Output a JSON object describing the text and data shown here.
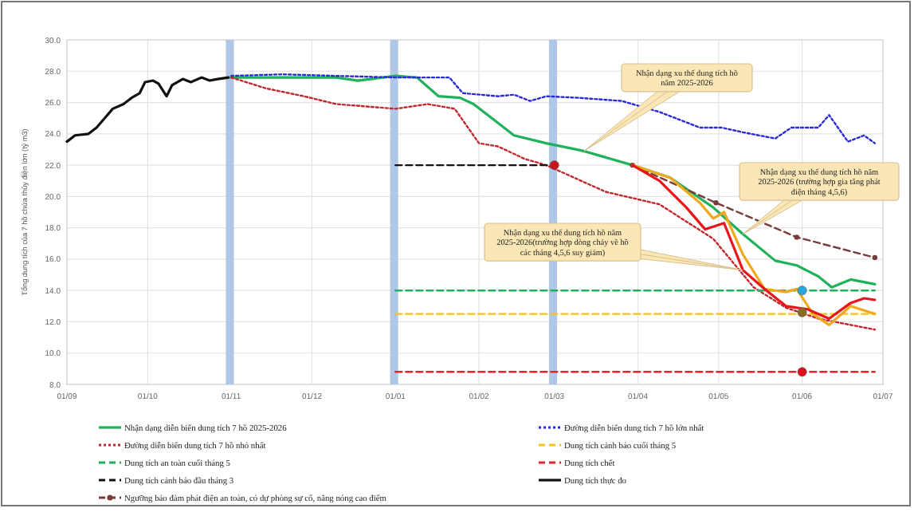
{
  "chart_data": {
    "type": "line",
    "ylabel": "Tổng dung tích của 7 hồ chứa thủy điện lớn (tỷ m3)",
    "xlim": [
      "2025-09-01",
      "2026-07-01"
    ],
    "xticks": [
      {
        "value": "2025-09-01",
        "label": "01/09"
      },
      {
        "value": "2025-10-01",
        "label": "01/10"
      },
      {
        "value": "2025-11-01",
        "label": "01/11"
      },
      {
        "value": "2025-12-01",
        "label": "01/12"
      },
      {
        "value": "2026-01-01",
        "label": "01/01"
      },
      {
        "value": "2026-02-01",
        "label": "01/02"
      },
      {
        "value": "2026-03-01",
        "label": "01/03"
      },
      {
        "value": "2026-04-01",
        "label": "01/04"
      },
      {
        "value": "2026-05-01",
        "label": "01/05"
      },
      {
        "value": "2026-06-01",
        "label": "01/06"
      },
      {
        "value": "2026-07-01",
        "label": "01/07"
      }
    ],
    "ylim": [
      8,
      30
    ],
    "yticks": [
      {
        "value": 8,
        "label": "8.0"
      },
      {
        "value": 10,
        "label": "10.0"
      },
      {
        "value": 12,
        "label": "12.0"
      },
      {
        "value": 14,
        "label": "14.0"
      },
      {
        "value": 16,
        "label": "16.0"
      },
      {
        "value": 18,
        "label": "18.0"
      },
      {
        "value": 20,
        "label": "20.0"
      },
      {
        "value": 22,
        "label": "22.0"
      },
      {
        "value": 24,
        "label": "24.0"
      },
      {
        "value": 26,
        "label": "26.0"
      },
      {
        "value": 28,
        "label": "28.0"
      },
      {
        "value": 30,
        "label": "30.0"
      }
    ],
    "grid": true,
    "legend": "bottom",
    "series": [
      {
        "name": "Nhận dạng diễn biến dung tích 7 hồ 2025-2026",
        "color": "#1fb25a",
        "line_style": "solid",
        "x": [
          "2025-11-01",
          "2025-11-20",
          "2025-12-10",
          "2025-12-18",
          "2026-01-01",
          "2026-01-09",
          "2026-01-17",
          "2026-01-25",
          "2026-01-30",
          "2026-02-08",
          "2026-02-14",
          "2026-02-26",
          "2026-03-12",
          "2026-03-30",
          "2026-04-13",
          "2026-04-29",
          "2026-05-10",
          "2026-05-22",
          "2026-05-30",
          "2026-06-07",
          "2026-06-12",
          "2026-06-19",
          "2026-06-28"
        ],
        "values": [
          27.6,
          27.6,
          27.6,
          27.4,
          27.7,
          27.6,
          26.4,
          26.3,
          25.9,
          24.7,
          23.9,
          23.4,
          22.9,
          22.0,
          21.2,
          19.3,
          17.6,
          15.9,
          15.6,
          14.9,
          14.2,
          14.7,
          14.4
        ]
      },
      {
        "name": "Đường diễn biến dung tích 7 hồ lớn nhất",
        "color": "#2a2ad6",
        "line_style": "dotted",
        "x": [
          "2025-11-01",
          "2025-11-20",
          "2025-12-10",
          "2026-01-01",
          "2026-01-21",
          "2026-01-26",
          "2026-02-08",
          "2026-02-14",
          "2026-02-20",
          "2026-02-26",
          "2026-03-10",
          "2026-03-26",
          "2026-04-09",
          "2026-04-24",
          "2026-05-02",
          "2026-05-10",
          "2026-05-22",
          "2026-05-28",
          "2026-06-07",
          "2026-06-11",
          "2026-06-18",
          "2026-06-24",
          "2026-06-28"
        ],
        "values": [
          27.7,
          27.8,
          27.7,
          27.6,
          27.6,
          26.6,
          26.4,
          26.5,
          26.1,
          26.4,
          26.3,
          26.1,
          25.4,
          24.4,
          24.4,
          24.1,
          23.7,
          24.4,
          24.4,
          25.2,
          23.5,
          23.9,
          23.4
        ]
      },
      {
        "name": "Đường diễn biến dung tích 7 hồ nhỏ nhất",
        "color": "#c0282d",
        "line_style": "dotted",
        "x": [
          "2025-11-01",
          "2025-11-14",
          "2025-11-28",
          "2025-12-10",
          "2026-01-01",
          "2026-01-13",
          "2026-01-23",
          "2026-02-01",
          "2026-02-08",
          "2026-02-18",
          "2026-02-26",
          "2026-03-20",
          "2026-04-09",
          "2026-04-29",
          "2026-05-14",
          "2026-05-26",
          "2026-06-07",
          "2026-06-28"
        ],
        "values": [
          27.6,
          26.9,
          26.4,
          25.9,
          25.6,
          25.9,
          25.6,
          23.4,
          23.2,
          22.4,
          22.0,
          20.3,
          19.5,
          17.3,
          14.2,
          12.9,
          12.2,
          11.5
        ]
      },
      {
        "name": "Dung tích cảnh báo cuối tháng 5",
        "color": "#f2c418",
        "line_style": "dashed",
        "x": [
          "2026-01-01",
          "2026-06-28"
        ],
        "values": [
          12.5,
          12.5
        ]
      },
      {
        "name": "Dung tích an toàn cuối tháng 5",
        "color": "#1fb25a",
        "line_style": "dashed",
        "x": [
          "2026-01-01",
          "2026-06-28"
        ],
        "values": [
          14.0,
          14.0
        ]
      },
      {
        "name": "Dung tích chết",
        "color": "#e0262b",
        "line_style": "dashed",
        "x": [
          "2026-01-01",
          "2026-06-28"
        ],
        "values": [
          8.8,
          8.8
        ]
      },
      {
        "name": "Dung tích cảnh báo đầu tháng 3",
        "color": "#111111",
        "line_style": "dashed",
        "x": [
          "2026-01-01",
          "2026-03-01"
        ],
        "values": [
          22.0,
          22.0
        ]
      },
      {
        "name": "Dung tích thực đo",
        "color": "#111111",
        "line_style": "solid",
        "x": [
          "2025-09-01",
          "2025-09-04",
          "2025-09-09",
          "2025-09-12",
          "2025-09-15",
          "2025-09-18",
          "2025-09-22",
          "2025-09-25",
          "2025-09-28",
          "2025-09-30",
          "2025-10-03",
          "2025-10-05",
          "2025-10-08",
          "2025-10-10",
          "2025-10-14",
          "2025-10-17",
          "2025-10-21",
          "2025-10-24",
          "2025-10-27",
          "2025-10-31"
        ],
        "values": [
          23.5,
          23.9,
          24.0,
          24.4,
          25.0,
          25.6,
          25.9,
          26.3,
          26.6,
          27.3,
          27.4,
          27.2,
          26.4,
          27.1,
          27.5,
          27.3,
          27.6,
          27.4,
          27.5,
          27.6
        ]
      },
      {
        "name": "Ngưỡng bảo đảm phát điện an toàn, có dự phòng sự cố, nắng nóng cao điểm",
        "color": "#7a3b3b",
        "line_style": "dashed",
        "marker": "circle",
        "x": [
          "2026-03-30",
          "2026-04-30",
          "2026-05-30",
          "2026-06-28"
        ],
        "values": [
          22.0,
          19.6,
          17.4,
          16.1
        ]
      },
      {
        "color": "#f0a91c",
        "line_style": "solid",
        "x": [
          "2026-03-30",
          "2026-04-13",
          "2026-04-24",
          "2026-04-29",
          "2026-05-03",
          "2026-05-10",
          "2026-05-18",
          "2026-05-26",
          "2026-05-30",
          "2026-06-05",
          "2026-06-11",
          "2026-06-19",
          "2026-06-28"
        ],
        "values": [
          22.0,
          21.2,
          19.6,
          18.6,
          19.0,
          16.3,
          14.1,
          13.9,
          14.1,
          12.5,
          11.8,
          13.0,
          12.5
        ]
      },
      {
        "color": "#e8161b",
        "line_style": "solid",
        "x": [
          "2026-03-30",
          "2026-04-09",
          "2026-04-19",
          "2026-04-26",
          "2026-05-03",
          "2026-05-10",
          "2026-05-18",
          "2026-05-26",
          "2026-06-03",
          "2026-06-11",
          "2026-06-19",
          "2026-06-24",
          "2026-06-28"
        ],
        "values": [
          22.0,
          21.0,
          19.3,
          17.9,
          18.3,
          15.3,
          14.1,
          13.0,
          12.8,
          12.2,
          13.2,
          13.5,
          13.4
        ]
      },
      {
        "type": "scatter",
        "x": [
          "2026-03-01",
          "2026-06-01",
          "2026-06-01",
          "2026-06-01"
        ],
        "values": [
          22.0,
          14.0,
          12.6,
          8.8
        ],
        "colors": [
          "#c8141a",
          "#29a8e0",
          "#8c6a1e",
          "#e0101a"
        ]
      }
    ],
    "bands": [
      {
        "axis": "x",
        "from": "2025-10-30",
        "to": "2025-11-02",
        "color": "#a9c1e6"
      },
      {
        "axis": "x",
        "from": "2025-12-30",
        "to": "2026-01-02",
        "color": "#a9c1e6"
      },
      {
        "axis": "x",
        "from": "2026-02-27",
        "to": "2026-03-02",
        "color": "#a9c1e6"
      }
    ],
    "annotations": [
      {
        "text": "Nhận dạng xu thế dung tích hồ năm 2025-2026",
        "x": "2026-03-12",
        "y": 22.9
      },
      {
        "text": "Nhận dạng xu thế dung tích hồ năm 2025-2026 (trường hợp gia tăng phát điện tháng 4,5,6)",
        "x": "2026-05-10",
        "y": 17.6
      },
      {
        "text": "Nhận dạng xu thế dung tích hồ năm 2025-2026(trường hợp dòng chảy về hồ các tháng 4,5,6 suy giảm)",
        "x": "2026-05-10",
        "y": 15.3
      }
    ]
  }
}
